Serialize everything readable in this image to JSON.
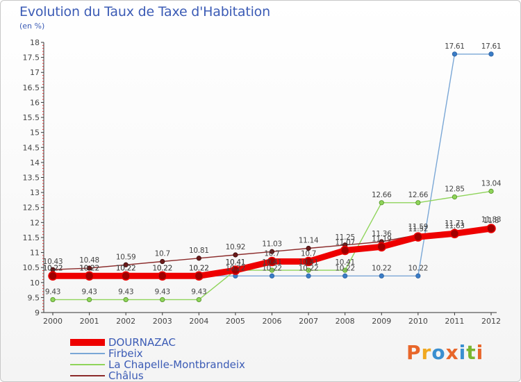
{
  "header": {
    "title": "Evolution du Taux de Taxe d'Habitation",
    "subtitle": "(en %)"
  },
  "watermark": {
    "text": "Proxiti",
    "letter_colors": [
      "#e8662a",
      "#f0a820",
      "#3a8fd0",
      "#e8662a",
      "#3a8fd0",
      "#7ab630",
      "#e8662a"
    ]
  },
  "chart_data": {
    "type": "line",
    "title": "Evolution du Taux de Taxe d'Habitation",
    "subtitle": "(en %)",
    "x": [
      "2000",
      "2001",
      "2002",
      "2003",
      "2004",
      "2005",
      "2006",
      "2007",
      "2008",
      "2009",
      "2010",
      "2011",
      "2012"
    ],
    "ylim": [
      9,
      18
    ],
    "yticks": [
      "9",
      "9.5",
      "10",
      "10.5",
      "11",
      "11.5",
      "12",
      "12.5",
      "13",
      "13.5",
      "14",
      "14.5",
      "15",
      "15.5",
      "16",
      "16.5",
      "17",
      "17.5",
      "18"
    ],
    "grid": false,
    "legend_position": "bottom-left",
    "series": [
      {
        "name": "DOURNAZAC",
        "color": "#ee0000",
        "values": [
          10.22,
          10.22,
          10.22,
          10.22,
          10.22,
          10.41,
          10.7,
          10.7,
          11.07,
          11.19,
          11.52,
          11.63,
          11.8
        ],
        "labels": [
          "10.22",
          "10.22",
          "10.22",
          "10.22",
          "10.22",
          "10.41",
          "10.7",
          "10.7",
          "11.07",
          "11.19",
          "11.52",
          "11.63",
          "11.8"
        ]
      },
      {
        "name": "Firbeix",
        "color": "#7aa7d6",
        "values": [
          10.22,
          10.22,
          10.22,
          10.22,
          10.22,
          10.22,
          10.22,
          10.22,
          10.22,
          10.22,
          10.22,
          17.61,
          17.61
        ],
        "labels": [
          "10.22",
          "10.22",
          "10.22",
          "10.22",
          "10.22",
          "10.22",
          "10.22",
          "10.22",
          "10.22",
          "10.22",
          "10.22",
          "17.61",
          "17.61"
        ]
      },
      {
        "name": "La Chapelle-Montbrandeix",
        "color": "#8fd45a",
        "values": [
          9.43,
          9.43,
          9.43,
          9.43,
          9.43,
          10.41,
          10.41,
          10.41,
          10.41,
          12.66,
          12.66,
          12.85,
          13.04
        ],
        "labels": [
          "9.43",
          "9.43",
          "9.43",
          "9.43",
          "9.43",
          "10.41",
          "10.41",
          "10.41",
          "10.41",
          "12.66",
          "12.66",
          "12.85",
          "13.04"
        ]
      },
      {
        "name": "Châlus",
        "color": "#8b2a2a",
        "values": [
          10.43,
          10.48,
          10.59,
          10.7,
          10.81,
          10.92,
          11.03,
          11.14,
          11.25,
          11.36,
          11.59,
          11.71,
          11.83
        ],
        "labels": [
          "10.43",
          "10.48",
          "10.59",
          "10.7",
          "10.81",
          "10.92",
          "11.03",
          "11.14",
          "11.25",
          "11.36",
          "11.59",
          "11.71",
          "11.83"
        ]
      }
    ]
  },
  "colors": {
    "title": "#3b5bb5",
    "axis": "#333333",
    "label": "#444444"
  }
}
